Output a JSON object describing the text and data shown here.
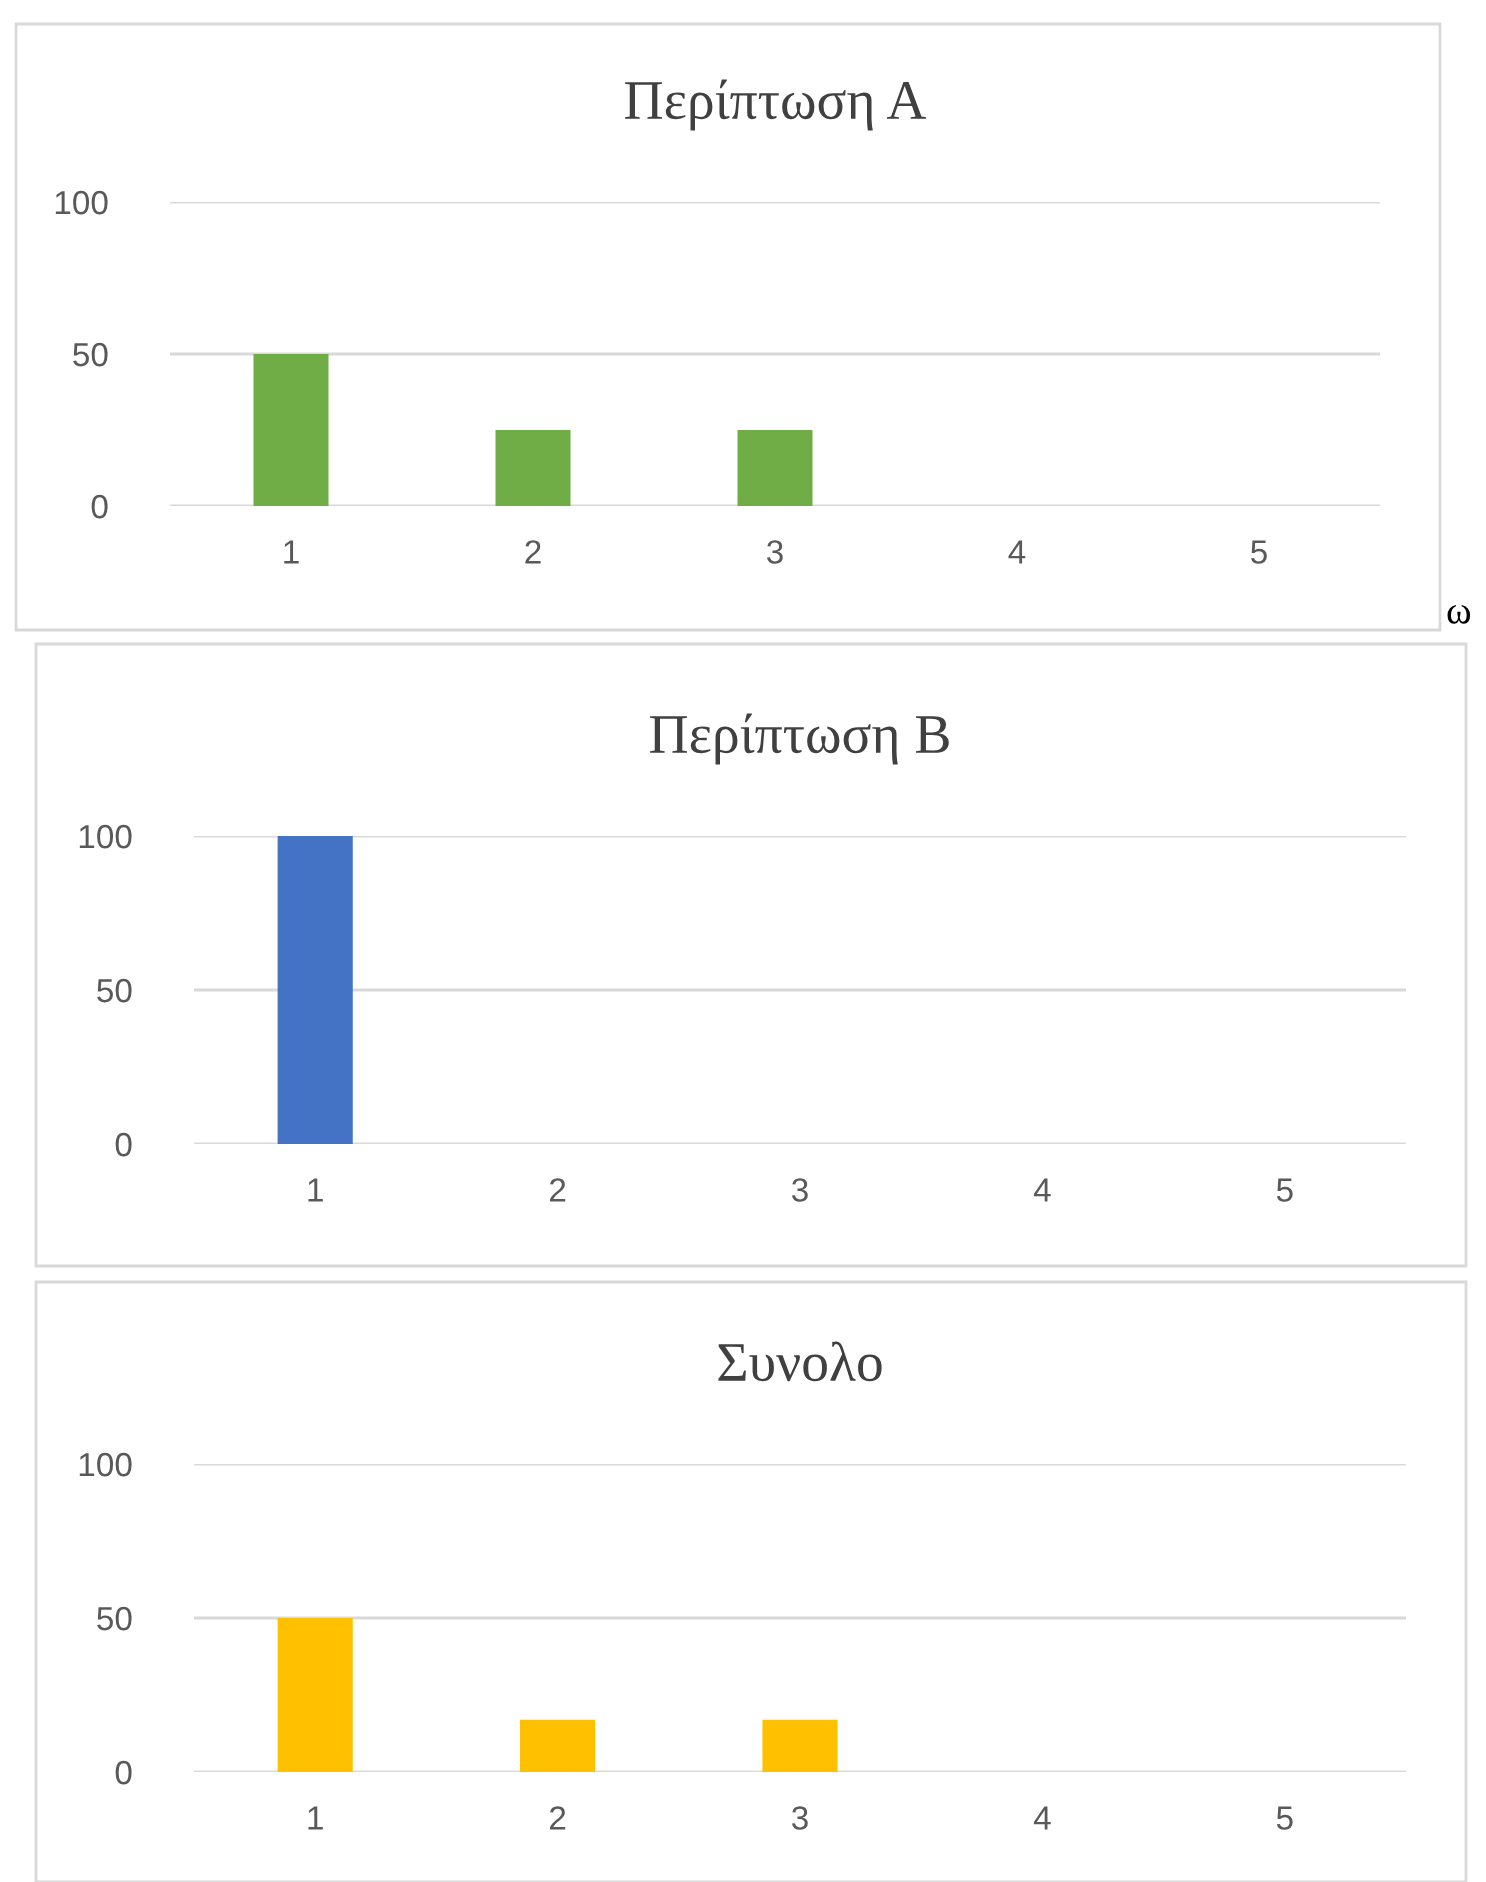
{
  "chart_data": [
    {
      "type": "bar",
      "title": "Περίπτωση Α",
      "categories": [
        "1",
        "2",
        "3",
        "4",
        "5"
      ],
      "values": [
        50,
        25,
        25,
        0,
        0
      ],
      "color": "#70ad47",
      "ylim": [
        0,
        100
      ],
      "yticks": [
        0,
        50,
        100
      ],
      "grid": "y",
      "annotations": [
        "ω"
      ]
    },
    {
      "type": "bar",
      "title": "Περίπτωση Β",
      "categories": [
        "1",
        "2",
        "3",
        "4",
        "5"
      ],
      "values": [
        100,
        0,
        0,
        0,
        0
      ],
      "color": "#4472c4",
      "ylim": [
        0,
        100
      ],
      "yticks": [
        0,
        50,
        100
      ],
      "grid": "y"
    },
    {
      "type": "bar",
      "title": "Συνολο",
      "categories": [
        "1",
        "2",
        "3",
        "4",
        "5"
      ],
      "values": [
        50,
        17,
        17,
        0,
        0
      ],
      "color": "#ffc000",
      "ylim": [
        0,
        100
      ],
      "yticks": [
        0,
        50,
        100
      ],
      "grid": "y"
    }
  ]
}
